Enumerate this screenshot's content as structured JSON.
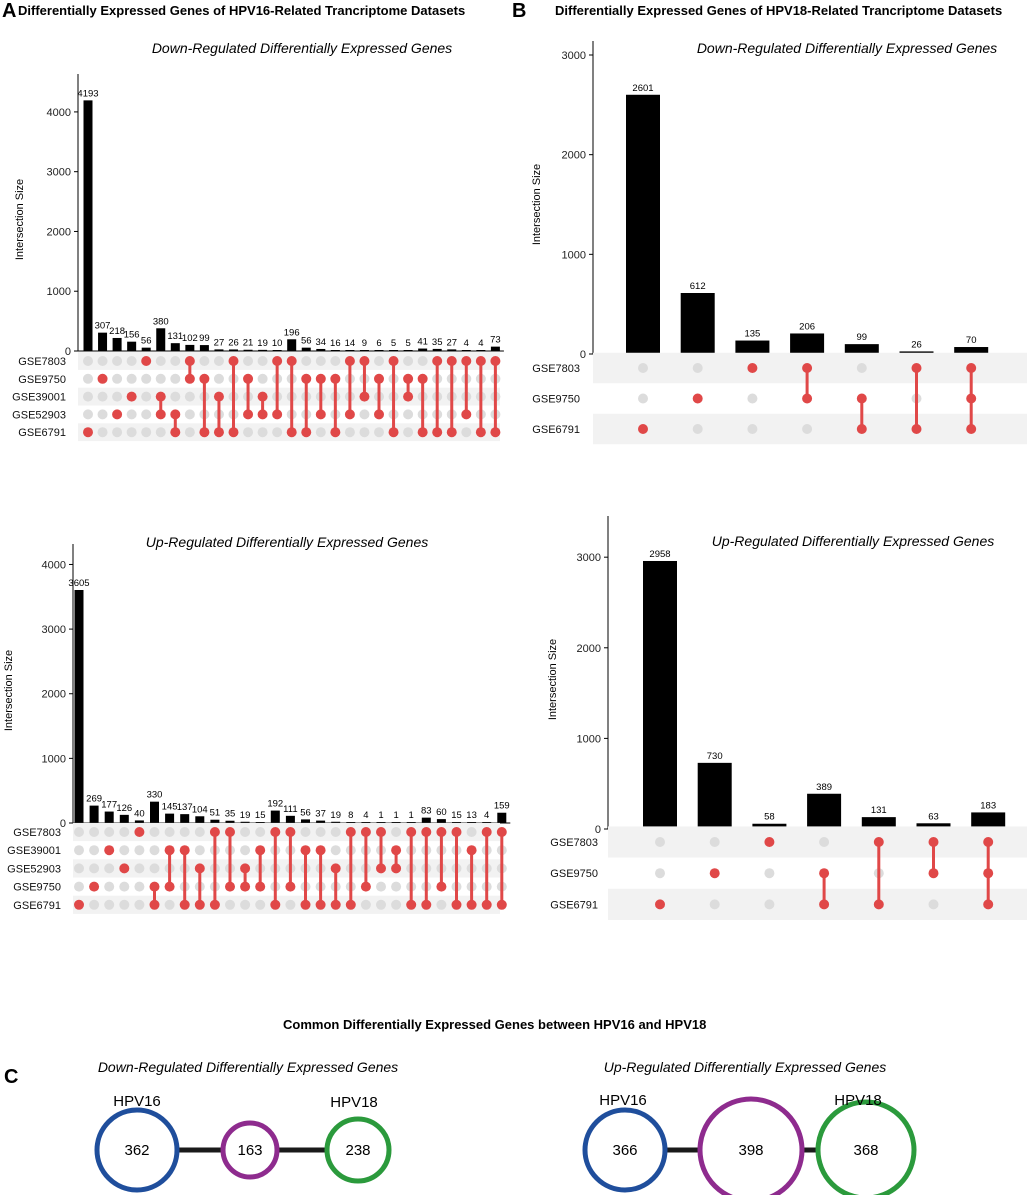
{
  "panels": {
    "a_letter": "A",
    "a_title": "Differentially Expressed Genes of HPV16-Related Trancriptome Datasets",
    "b_letter": "B",
    "b_title": "Differentially Expressed Genes of HPV18-Related Trancriptome Datasets",
    "c_letter": "C",
    "c_title": "Common Differentially Expressed Genes between HPV16 and HPV18"
  },
  "colors": {
    "bar": "#000000",
    "active": "#e04848",
    "inactive": "#dcdcdc",
    "stripe": "#f2f2f2",
    "hpv16": "#1f4e9c",
    "common": "#8e2b8e",
    "hpv18": "#2b9a3c",
    "link": "#1a1a1a"
  },
  "chart_data": [
    {
      "id": "A_down",
      "type": "upset",
      "title": "Down-Regulated Differentially Expressed Genes",
      "ylabel": "Intersection Size",
      "ylim": [
        0,
        4400
      ],
      "yticks": [
        0,
        1000,
        2000,
        3000,
        4000
      ],
      "sets": [
        "GSE7803",
        "GSE9750",
        "GSE39001",
        "GSE52903",
        "GSE6791"
      ],
      "values": [
        4193,
        307,
        218,
        156,
        56,
        380,
        131,
        102,
        99,
        27,
        26,
        21,
        19,
        10,
        196,
        56,
        34,
        16,
        14,
        9,
        6,
        5,
        5,
        41,
        35,
        27,
        4,
        4,
        73
      ],
      "members": [
        [
          4
        ],
        [
          1
        ],
        [
          3
        ],
        [
          2
        ],
        [
          0
        ],
        [
          2,
          3
        ],
        [
          3,
          4
        ],
        [
          0,
          1
        ],
        [
          1,
          4
        ],
        [
          2,
          4
        ],
        [
          0,
          4
        ],
        [
          1,
          3
        ],
        [
          2,
          3
        ],
        [
          0,
          3
        ],
        [
          0,
          4
        ],
        [
          1,
          4
        ],
        [
          1,
          3
        ],
        [
          1,
          4
        ],
        [
          0,
          3
        ],
        [
          0,
          2
        ],
        [
          1,
          3
        ],
        [
          0,
          4
        ],
        [
          1,
          2
        ],
        [
          1,
          4
        ],
        [
          0,
          4
        ],
        [
          0,
          4
        ],
        [
          0,
          3
        ],
        [
          0,
          4
        ],
        [
          0,
          4
        ]
      ]
    },
    {
      "id": "A_up",
      "type": "upset",
      "title": "Up-Regulated Differentially Expressed Genes",
      "ylabel": "Intersection Size",
      "ylim": [
        0,
        4100
      ],
      "yticks": [
        0,
        1000,
        2000,
        3000,
        4000
      ],
      "sets": [
        "GSE7803",
        "GSE39001",
        "GSE52903",
        "GSE9750",
        "GSE6791"
      ],
      "values": [
        3605,
        269,
        177,
        126,
        40,
        330,
        145,
        137,
        104,
        51,
        35,
        19,
        15,
        192,
        111,
        56,
        37,
        19,
        8,
        4,
        1,
        1,
        1,
        83,
        60,
        15,
        13,
        4,
        159
      ],
      "members": [
        [
          4
        ],
        [
          3
        ],
        [
          1
        ],
        [
          2
        ],
        [
          0
        ],
        [
          3,
          4
        ],
        [
          1,
          3
        ],
        [
          1,
          4
        ],
        [
          2,
          4
        ],
        [
          0,
          4
        ],
        [
          0,
          3
        ],
        [
          2,
          3
        ],
        [
          1,
          3
        ],
        [
          0,
          4
        ],
        [
          0,
          3
        ],
        [
          1,
          4
        ],
        [
          1,
          4
        ],
        [
          2,
          4
        ],
        [
          0,
          4
        ],
        [
          0,
          3
        ],
        [
          0,
          2
        ],
        [
          1,
          2
        ],
        [
          0,
          4
        ],
        [
          0,
          4
        ],
        [
          0,
          3
        ],
        [
          0,
          4
        ],
        [
          1,
          4
        ],
        [
          0,
          4
        ],
        [
          0,
          4
        ]
      ]
    },
    {
      "id": "B_down",
      "type": "upset",
      "title": "Down-Regulated Differentially Expressed Genes",
      "ylabel": "Intersection Size",
      "ylim": [
        0,
        3000
      ],
      "yticks": [
        0,
        1000,
        2000,
        3000
      ],
      "sets": [
        "GSE7803",
        "GSE9750",
        "GSE6791"
      ],
      "values": [
        2601,
        612,
        135,
        206,
        99,
        26,
        70
      ],
      "members": [
        [
          2
        ],
        [
          1
        ],
        [
          0
        ],
        [
          0,
          1
        ],
        [
          1,
          2
        ],
        [
          0,
          2
        ],
        [
          0,
          1,
          2
        ]
      ]
    },
    {
      "id": "B_up",
      "type": "upset",
      "title": "Up-Regulated Differentially Expressed Genes",
      "ylabel": "Intersection Size",
      "ylim": [
        0,
        3300
      ],
      "yticks": [
        0,
        1000,
        2000,
        3000
      ],
      "sets": [
        "GSE7803",
        "GSE9750",
        "GSE6791"
      ],
      "values": [
        2958,
        730,
        58,
        389,
        131,
        63,
        183
      ],
      "members": [
        [
          2
        ],
        [
          1
        ],
        [
          0
        ],
        [
          1,
          2
        ],
        [
          0,
          2
        ],
        [
          0,
          1
        ],
        [
          0,
          1,
          2
        ]
      ]
    }
  ],
  "venn": [
    {
      "id": "C_down",
      "title": "Down-Regulated Differentially Expressed Genes",
      "left_name": "HPV16",
      "right_name": "HPV18",
      "left": 362,
      "common": 163,
      "right": 238
    },
    {
      "id": "C_up",
      "title": "Up-Regulated Differentially Expressed Genes",
      "left_name": "HPV16",
      "right_name": "HPV18",
      "left": 366,
      "common": 398,
      "right": 368
    }
  ]
}
